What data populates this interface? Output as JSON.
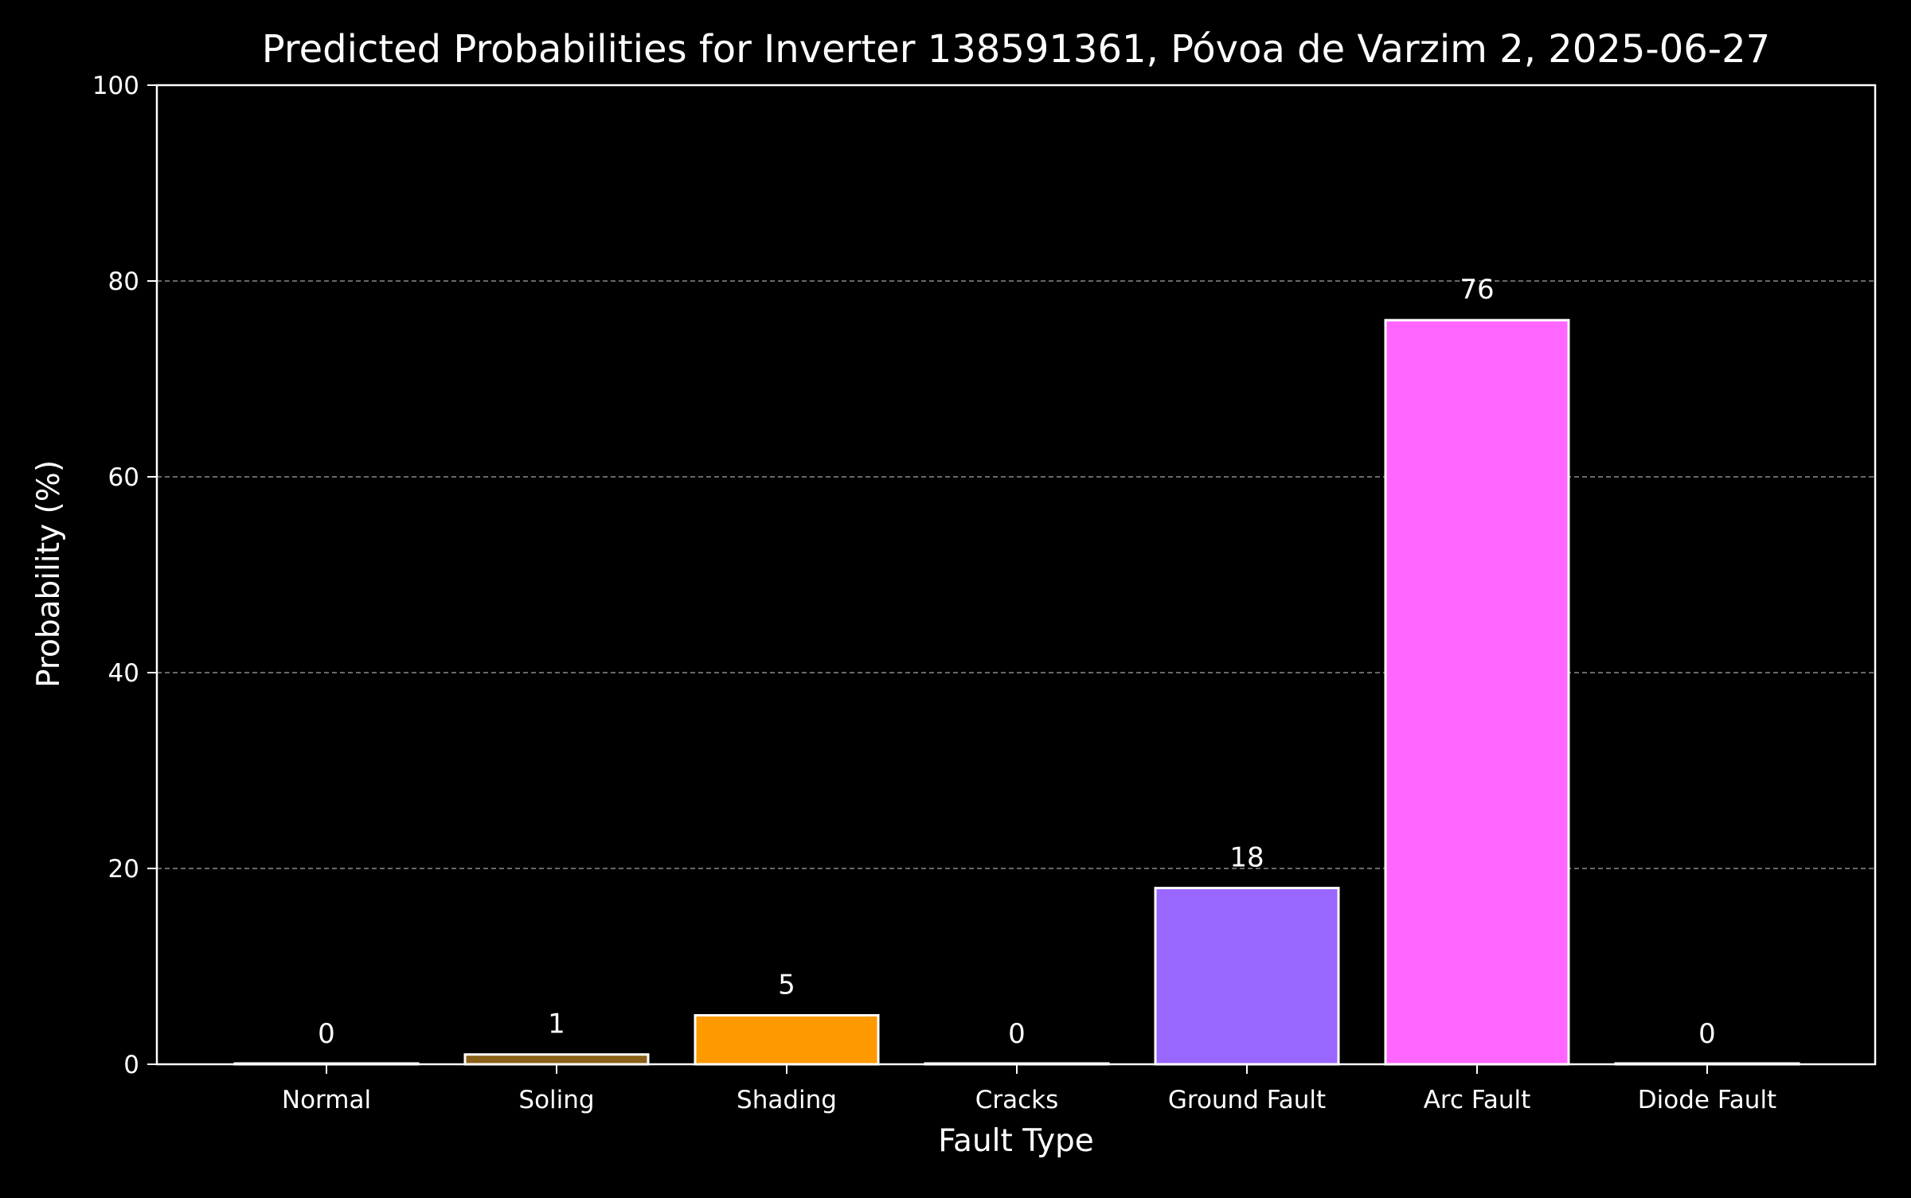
{
  "chart_data": {
    "type": "bar",
    "title": "Predicted Probabilities for Inverter 138591361, Póvoa de Varzim 2, 2025-06-27",
    "xlabel": "Fault Type",
    "ylabel": "Probability (%)",
    "categories": [
      "Normal",
      "Soling",
      "Shading",
      "Cracks",
      "Ground Fault",
      "Arc Fault",
      "Diode Fault"
    ],
    "values": [
      0,
      1,
      5,
      0,
      18,
      76,
      0
    ],
    "data_labels": [
      "0",
      "1",
      "5",
      "0",
      "18",
      "76",
      "0"
    ],
    "colors": [
      "#ffffff",
      "#8b6119",
      "#ff9900",
      "#ffffff",
      "#9966ff",
      "#ff66ff",
      "#ffffff"
    ],
    "ylim": [
      0,
      100
    ],
    "yticks": [
      "0",
      "20",
      "40",
      "60",
      "80",
      "100"
    ],
    "grid": "horizontal dashed",
    "background": "#000000"
  }
}
